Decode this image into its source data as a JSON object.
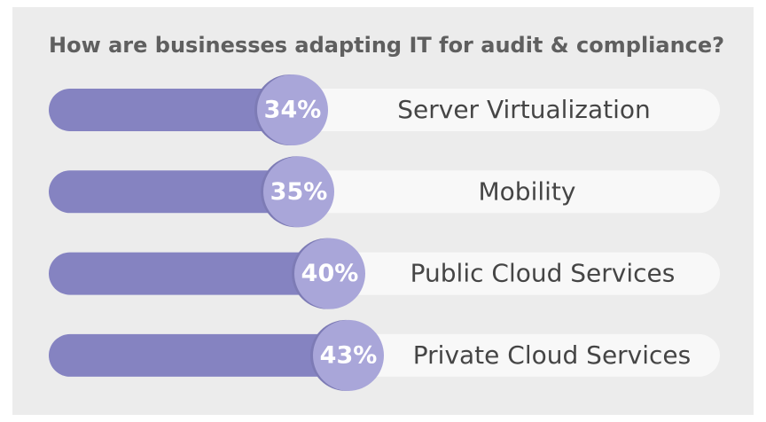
{
  "chart_data": {
    "type": "bar",
    "title": "How are businesses adapting IT for audit & compliance?",
    "categories": [
      "Server Virtualization",
      "Mobility",
      "Public Cloud Services",
      "Private Cloud Services"
    ],
    "values": [
      34,
      35,
      40,
      43
    ],
    "value_labels": [
      "34%",
      "35%",
      "40%",
      "43%"
    ],
    "color": "#8583c1",
    "badge_color": "#a9a6d9",
    "track_color": "#f8f8f8"
  }
}
